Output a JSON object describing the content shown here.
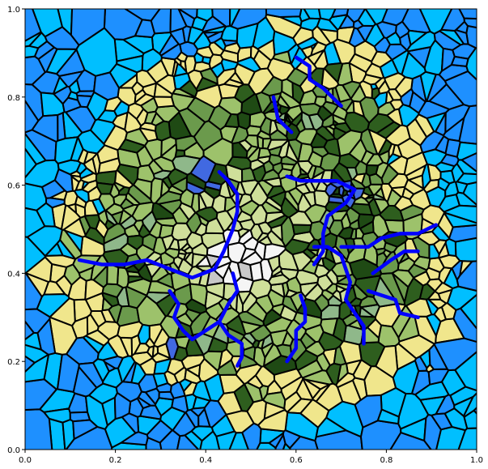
{
  "figure": {
    "type": "voronoi-terrain-map",
    "background": "#ffffff",
    "plot_background": "#1fa0ff"
  },
  "axes": {
    "xlim": [
      0.0,
      1.0
    ],
    "ylim": [
      0.0,
      1.0
    ],
    "x_ticks": [
      "0.0",
      "0.2",
      "0.4",
      "0.6",
      "0.8",
      "1.0"
    ],
    "y_ticks": [
      "0.0",
      "0.2",
      "0.4",
      "0.6",
      "0.8",
      "1.0"
    ]
  },
  "legend_colors": {
    "deep_ocean": "#1e90ff",
    "ocean": "#00bfff",
    "beach": "#f0e68c",
    "lowland": "#9dc26b",
    "forest": "#6b9a4c",
    "dark_forest": "#2e5e1e",
    "deep_forest": "#1f4a14",
    "highland": "#cfdf9a",
    "lake": "#4169e1",
    "tundra": "#8fb88a",
    "snow": "#f5f5f5",
    "rock": "#c8c8c8",
    "cell_border": "#000000",
    "river": "#0000ff"
  },
  "chart_data": {
    "type": "voronoi-map",
    "xlim": [
      0,
      1
    ],
    "ylim": [
      0,
      1
    ],
    "rivers": [
      [
        [
          0.12,
          0.43
        ],
        [
          0.17,
          0.42
        ],
        [
          0.22,
          0.42
        ],
        [
          0.27,
          0.43
        ],
        [
          0.32,
          0.41
        ],
        [
          0.37,
          0.39
        ],
        [
          0.42,
          0.41
        ],
        [
          0.44,
          0.45
        ],
        [
          0.46,
          0.5
        ],
        [
          0.47,
          0.54
        ],
        [
          0.47,
          0.58
        ],
        [
          0.45,
          0.61
        ],
        [
          0.43,
          0.63
        ]
      ],
      [
        [
          0.32,
          0.36
        ],
        [
          0.34,
          0.33
        ],
        [
          0.33,
          0.3
        ],
        [
          0.35,
          0.27
        ],
        [
          0.37,
          0.25
        ],
        [
          0.4,
          0.27
        ],
        [
          0.43,
          0.29
        ],
        [
          0.45,
          0.33
        ],
        [
          0.47,
          0.36
        ],
        [
          0.46,
          0.4
        ]
      ],
      [
        [
          0.43,
          0.29
        ],
        [
          0.45,
          0.26
        ],
        [
          0.48,
          0.24
        ],
        [
          0.48,
          0.21
        ],
        [
          0.47,
          0.19
        ]
      ],
      [
        [
          0.58,
          0.2
        ],
        [
          0.6,
          0.23
        ],
        [
          0.6,
          0.27
        ],
        [
          0.62,
          0.29
        ],
        [
          0.62,
          0.32
        ],
        [
          0.61,
          0.35
        ]
      ],
      [
        [
          0.75,
          0.24
        ],
        [
          0.75,
          0.28
        ],
        [
          0.73,
          0.31
        ],
        [
          0.71,
          0.34
        ],
        [
          0.72,
          0.38
        ],
        [
          0.71,
          0.41
        ],
        [
          0.7,
          0.44
        ],
        [
          0.67,
          0.46
        ],
        [
          0.64,
          0.46
        ]
      ],
      [
        [
          0.91,
          0.51
        ],
        [
          0.87,
          0.49
        ],
        [
          0.83,
          0.49
        ],
        [
          0.79,
          0.48
        ],
        [
          0.76,
          0.46
        ],
        [
          0.73,
          0.46
        ],
        [
          0.7,
          0.46
        ]
      ],
      [
        [
          0.64,
          0.42
        ],
        [
          0.66,
          0.45
        ],
        [
          0.66,
          0.49
        ],
        [
          0.67,
          0.53
        ],
        [
          0.71,
          0.56
        ],
        [
          0.73,
          0.59
        ],
        [
          0.69,
          0.61
        ],
        [
          0.65,
          0.61
        ],
        [
          0.61,
          0.61
        ],
        [
          0.58,
          0.62
        ]
      ],
      [
        [
          0.6,
          0.89
        ],
        [
          0.63,
          0.87
        ],
        [
          0.63,
          0.84
        ],
        [
          0.66,
          0.82
        ],
        [
          0.68,
          0.8
        ],
        [
          0.7,
          0.78
        ]
      ],
      [
        [
          0.55,
          0.8
        ],
        [
          0.56,
          0.75
        ],
        [
          0.59,
          0.72
        ]
      ],
      [
        [
          0.76,
          0.36
        ],
        [
          0.79,
          0.35
        ],
        [
          0.82,
          0.34
        ],
        [
          0.83,
          0.31
        ],
        [
          0.87,
          0.3
        ]
      ],
      [
        [
          0.77,
          0.4
        ],
        [
          0.81,
          0.43
        ],
        [
          0.84,
          0.45
        ],
        [
          0.87,
          0.45
        ]
      ]
    ],
    "zones": [
      {
        "kind": "snow",
        "cx": 0.47,
        "cy": 0.43,
        "rx": 0.085,
        "ry": 0.07
      },
      {
        "kind": "highland",
        "cx": 0.53,
        "cy": 0.48,
        "rx": 0.15,
        "ry": 0.13
      },
      {
        "kind": "lowland",
        "cx": 0.5,
        "cy": 0.5,
        "rx": 0.36,
        "ry": 0.34
      },
      {
        "kind": "beach",
        "cx": 0.5,
        "cy": 0.5,
        "rx": 0.46,
        "ry": 0.45
      },
      {
        "kind": "ocean",
        "cx": 0.5,
        "cy": 0.5,
        "rx": 0.62,
        "ry": 0.62
      }
    ]
  }
}
